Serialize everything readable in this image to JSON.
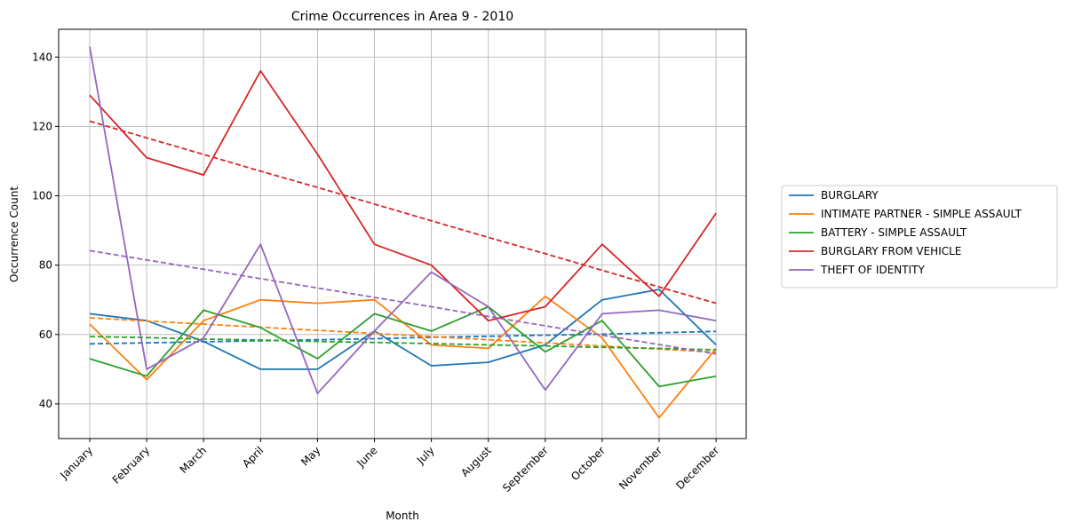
{
  "chart_data": {
    "type": "line",
    "title": "Crime Occurrences in Area 9 - 2010",
    "xlabel": "Month",
    "ylabel": "Occurrence Count",
    "categories": [
      "January",
      "February",
      "March",
      "April",
      "May",
      "June",
      "July",
      "August",
      "September",
      "October",
      "November",
      "December"
    ],
    "y_ticks": [
      "40",
      "60",
      "80",
      "100",
      "120",
      "140"
    ],
    "ylim": [
      30,
      148
    ],
    "grid": true,
    "legend_position": "right",
    "series": [
      {
        "name": "BURGLARY",
        "color": "#1f77b4",
        "values": [
          66,
          64,
          58,
          50,
          50,
          61,
          51,
          52,
          57,
          70,
          73,
          57
        ],
        "trend": [
          57.3,
          57.6,
          57.9,
          58.2,
          58.5,
          58.8,
          59.2,
          59.5,
          59.8,
          60.1,
          60.5,
          60.9
        ]
      },
      {
        "name": "INTIMATE PARTNER - SIMPLE ASSAULT",
        "color": "#ff7f0e",
        "values": [
          63,
          47,
          64,
          70,
          69,
          70,
          57,
          56,
          71,
          59,
          36,
          56
        ],
        "trend": [
          64.8,
          63.9,
          63.0,
          62.1,
          61.2,
          60.3,
          59.4,
          58.5,
          57.6,
          56.7,
          55.8,
          54.9
        ]
      },
      {
        "name": "BATTERY - SIMPLE ASSAULT",
        "color": "#2ca02c",
        "values": [
          53,
          48,
          67,
          62,
          53,
          66,
          61,
          68,
          55,
          64,
          45,
          48
        ],
        "trend": [
          59.4,
          59.1,
          58.7,
          58.4,
          58.0,
          57.7,
          57.4,
          57.0,
          56.7,
          56.3,
          56.0,
          55.6
        ]
      },
      {
        "name": "BURGLARY FROM VEHICLE",
        "color": "#d62728",
        "values": [
          129,
          111,
          106,
          136,
          112,
          86,
          80,
          64,
          68,
          86,
          71,
          95
        ],
        "trend": [
          121.5,
          116.7,
          111.9,
          107.1,
          102.4,
          97.6,
          92.8,
          88.0,
          83.3,
          78.5,
          73.7,
          69.0
        ]
      },
      {
        "name": "THEFT OF IDENTITY",
        "color": "#9467bd",
        "values": [
          143,
          50,
          59,
          86,
          43,
          61,
          78,
          68,
          44,
          66,
          67,
          64
        ],
        "trend": [
          84.2,
          81.5,
          78.8,
          76.1,
          73.4,
          70.7,
          68.0,
          65.2,
          62.5,
          59.8,
          57.1,
          54.4
        ]
      }
    ]
  }
}
